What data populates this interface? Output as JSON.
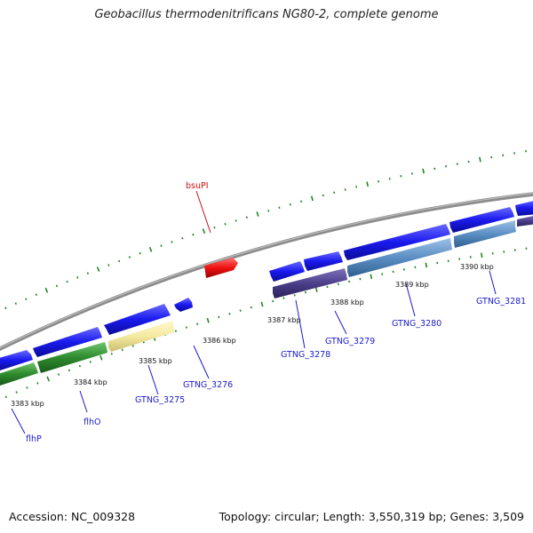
{
  "header": {
    "title": "Geobacillus thermodenitrificans NG80-2, complete genome"
  },
  "footer": {
    "accession": "Accession: NC_009328",
    "summary": "Topology: circular; Length: 3,550,319 bp; Genes: 3,509"
  },
  "colors": {
    "backbone": "#8c8c8c",
    "tick": "#1f8a1f",
    "gene_blue": "#1a1aee",
    "gene_green": "#2e8b2e",
    "gene_yellow": "#f4eaa0",
    "gene_steel": "#5b8fc4",
    "gene_purple": "#4b3f8a",
    "gene_red": "#ee1111",
    "label_blue": "#1a1acc",
    "label_red": "#cc1111"
  },
  "ruler": {
    "labels": [
      "3383 kbp",
      "3384 kbp",
      "3385 kbp",
      "3386 kbp",
      "3387 kbp",
      "3388 kbp",
      "3389 kbp",
      "3390 kbp"
    ]
  },
  "gene_labels": [
    "flhP",
    "flhO",
    "GTNG_3275",
    "GTNG_3276",
    "GTNG_3278",
    "GTNG_3279",
    "GTNG_3280",
    "GTNG_3281",
    "bsuPI"
  ]
}
